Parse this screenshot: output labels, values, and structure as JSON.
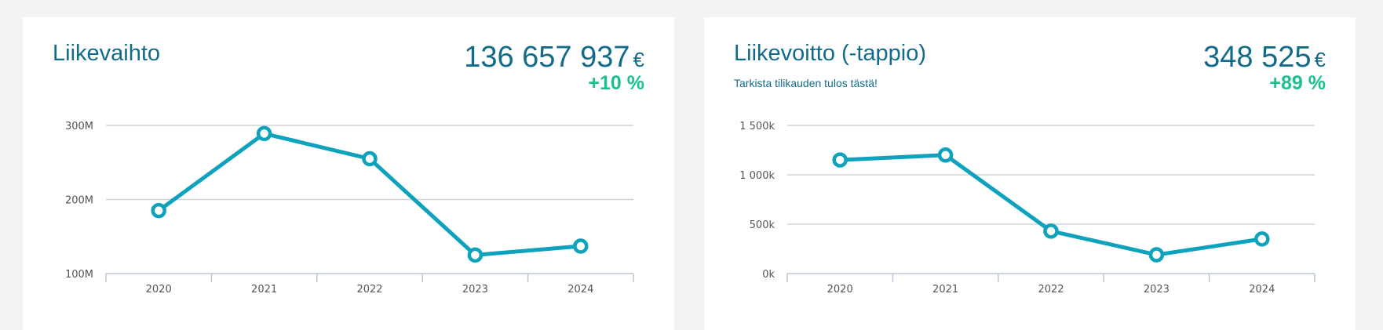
{
  "colors": {
    "accent": "#0ea2bd",
    "title": "#136b8a",
    "positive": "#1bc08e",
    "grid": "#cfd4d8"
  },
  "cards": [
    {
      "title": "Liikevaihto",
      "subtitle": "",
      "value": "136 657 937",
      "unit": "€",
      "change": "+10 %"
    },
    {
      "title": "Liikevoitto (-tappio)",
      "subtitle": "Tarkista tilikauden tulos tästä!",
      "value": "348 525",
      "unit": "€",
      "change": "+89 %"
    }
  ],
  "chart_data": [
    {
      "type": "line",
      "categories": [
        "2020",
        "2021",
        "2022",
        "2023",
        "2024"
      ],
      "series": [
        {
          "values": [
            185000000,
            289000000,
            255000000,
            125000000,
            137000000
          ]
        }
      ],
      "yticks": [
        100000000,
        200000000,
        300000000
      ],
      "ytick_labels": [
        "100M",
        "200M",
        "300M"
      ],
      "ylim": [
        100000000,
        300000000
      ],
      "grid": true
    },
    {
      "type": "line",
      "categories": [
        "2020",
        "2021",
        "2022",
        "2023",
        "2024"
      ],
      "series": [
        {
          "values": [
            1150000,
            1200000,
            430000,
            190000,
            350000
          ]
        }
      ],
      "yticks": [
        0,
        500000,
        1000000,
        1500000
      ],
      "ytick_labels": [
        "0k",
        "500k",
        "1 000k",
        "1 500k"
      ],
      "ylim": [
        0,
        1500000
      ],
      "grid": true
    }
  ]
}
